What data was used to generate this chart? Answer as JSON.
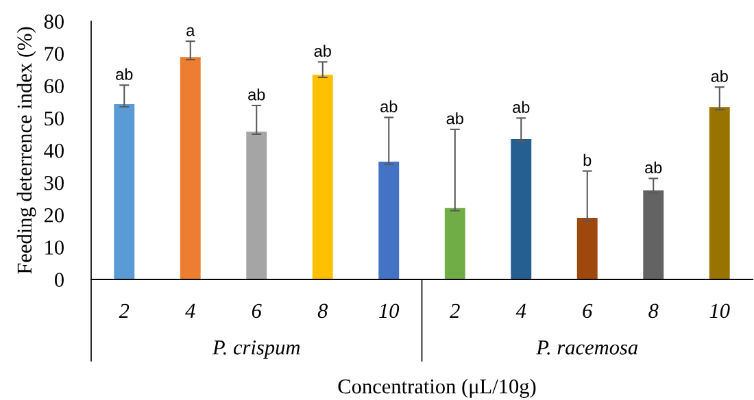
{
  "chart_data": {
    "type": "bar",
    "xlabel": "Concentration (μL/10g)",
    "ylabel": "Feeding deterrence index (%)",
    "categories": [
      "2",
      "4",
      "6",
      "8",
      "10",
      "2",
      "4",
      "6",
      "8",
      "10"
    ],
    "values": [
      54.3,
      68.9,
      45.8,
      63.4,
      36.5,
      22.1,
      43.5,
      19.1,
      27.6,
      53.4
    ],
    "colors": [
      "#5b9bd5",
      "#ed7d31",
      "#a5a5a5",
      "#ffc000",
      "#4472c4",
      "#70ad47",
      "#255e91",
      "#9e480e",
      "#636363",
      "#997300"
    ],
    "errors": [
      [
        53.5,
        60.2
      ],
      [
        68.1,
        73.8
      ],
      [
        45.0,
        53.9
      ],
      [
        62.6,
        67.4
      ],
      [
        35.7,
        50.2
      ],
      [
        21.3,
        46.5
      ],
      [
        42.7,
        50.0
      ],
      [
        18.3,
        33.6
      ],
      [
        26.8,
        31.3
      ],
      [
        52.6,
        59.6
      ]
    ],
    "annotations": [
      "P. crispum",
      "P. racemosa",
      "ab",
      "a",
      "ab",
      "ab",
      "ab",
      "ab",
      "ab",
      "b",
      "ab",
      "ab"
    ],
    "ylim": [
      0,
      80
    ],
    "yticks": [
      0,
      10,
      20,
      30,
      40,
      50,
      60,
      70,
      80
    ],
    "grid": false,
    "legend": false
  }
}
